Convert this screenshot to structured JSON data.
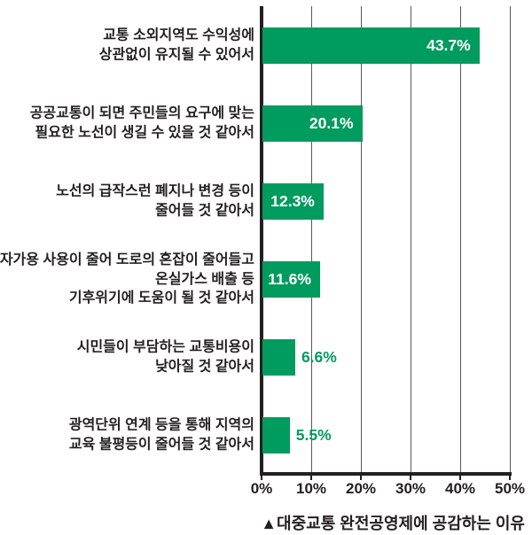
{
  "colors": {
    "bar_green": "#009b5e",
    "text_dark": "#231f20",
    "grid_gray": "#58585a",
    "value_inside_text": "#ffffff",
    "value_outside_text": "#009b5e",
    "background": "#ffffff"
  },
  "chart_data": {
    "type": "bar",
    "orientation": "horizontal",
    "title": "▲대중교통 완전공영제에 공감하는 이유",
    "xlabel": "",
    "ylabel": "",
    "xlim": [
      0,
      50
    ],
    "grid": true,
    "legend": false,
    "x_tick_values": [
      0,
      10,
      20,
      30,
      40,
      50
    ],
    "x_tick_labels": [
      "0%",
      "10%",
      "20%",
      "30%",
      "40%",
      "50%"
    ],
    "categories": [
      "교통 소외지역도 수익성에 상관없이 유지될 수 있어서",
      "공공교통이 되면 주민들의 요구에 맞는 필요한 노선이 생길 수 있을 것 같아서",
      "노선의 급작스런 폐지나 변경 등이 줄어들 것 같아서",
      "자가용 사용이 줄어 도로의 혼잡이 줄어들고 온실가스 배출 등 기후위기에 도움이 될 것 같아서",
      "시민들이 부담하는 교통비용이 낮아질 것 같아서",
      "광역단위 연계 등을 통해 지역의 교육 불평등이 줄어들 것 같아서"
    ],
    "values": [
      43.7,
      20.1,
      12.3,
      11.6,
      6.6,
      5.5
    ],
    "bars": [
      {
        "category_lines": [
          "교통 소외지역도 수익성에",
          "상관없이 유지될 수 있어서"
        ],
        "value": 43.7,
        "value_label": "43.7%",
        "value_label_placement": "inside"
      },
      {
        "category_lines": [
          "공공교통이 되면 주민들의 요구에 맞는",
          "필요한 노선이 생길 수 있을 것 같아서"
        ],
        "value": 20.1,
        "value_label": "20.1%",
        "value_label_placement": "inside"
      },
      {
        "category_lines": [
          "노선의 급작스런 폐지나 변경 등이",
          "줄어들 것 같아서"
        ],
        "value": 12.3,
        "value_label": "12.3%",
        "value_label_placement": "inside"
      },
      {
        "category_lines": [
          "자가용 사용이 줄어 도로의 혼잡이 줄어들고",
          "온실가스 배출 등",
          "기후위기에 도움이 될 것 같아서"
        ],
        "value": 11.6,
        "value_label": "11.6%",
        "value_label_placement": "inside"
      },
      {
        "category_lines": [
          "시민들이 부담하는 교통비용이",
          "낮아질 것 같아서"
        ],
        "value": 6.6,
        "value_label": "6.6%",
        "value_label_placement": "outside"
      },
      {
        "category_lines": [
          "광역단위 연계 등을 통해 지역의",
          "교육 불평등이 줄어들 것 같아서"
        ],
        "value": 5.5,
        "value_label": "5.5%",
        "value_label_placement": "outside"
      }
    ]
  }
}
